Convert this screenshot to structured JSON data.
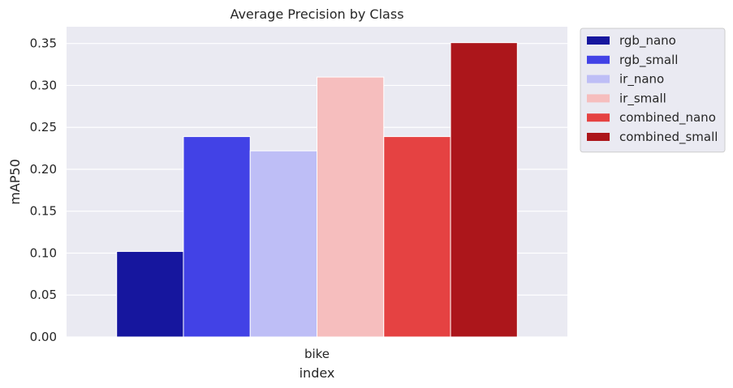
{
  "chart_data": {
    "type": "bar",
    "title": "Average Precision by Class",
    "xlabel": "index",
    "ylabel": "mAP50",
    "categories": [
      "bike"
    ],
    "ylim": [
      0,
      0.37
    ],
    "yticks": [
      0.0,
      0.05,
      0.1,
      0.15,
      0.2,
      0.25,
      0.3,
      0.35
    ],
    "grid": true,
    "legend_position": "outside-top-right",
    "series": [
      {
        "name": "rgb_nano",
        "values": [
          0.102
        ],
        "color": "#16169e"
      },
      {
        "name": "rgb_small",
        "values": [
          0.239
        ],
        "color": "#4242e6"
      },
      {
        "name": "ir_nano",
        "values": [
          0.222
        ],
        "color": "#bebef6"
      },
      {
        "name": "ir_small",
        "values": [
          0.31
        ],
        "color": "#f6bebe"
      },
      {
        "name": "combined_nano",
        "values": [
          0.239
        ],
        "color": "#e54242"
      },
      {
        "name": "combined_small",
        "values": [
          0.351
        ],
        "color": "#ac161b"
      }
    ]
  }
}
